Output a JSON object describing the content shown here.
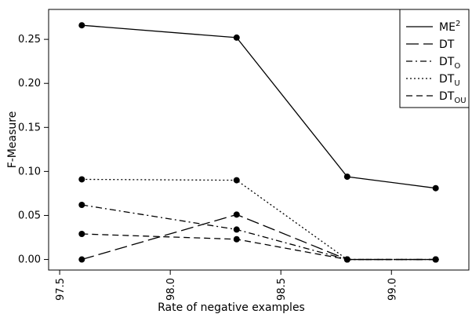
{
  "chart_data": {
    "type": "line",
    "xlabel": "Rate of negative examples",
    "ylabel": "F-Measure",
    "xlim": [
      97.45,
      99.35
    ],
    "ylim": [
      -0.012,
      0.284
    ],
    "x_ticks": [
      "97.5",
      "98.0",
      "98.5",
      "99.0"
    ],
    "y_ticks": [
      "0.00",
      "0.05",
      "0.10",
      "0.15",
      "0.20",
      "0.25"
    ],
    "x": [
      97.6,
      98.3,
      98.8,
      99.2
    ],
    "grid": false,
    "legend_position": "top-right",
    "series": [
      {
        "name": "ME",
        "sup": "2",
        "sub": "",
        "dash": "",
        "values": [
          0.266,
          0.252,
          0.094,
          0.081
        ]
      },
      {
        "name": "DT",
        "sup": "",
        "sub": "",
        "dash": "16,6",
        "values": [
          0.0,
          0.051,
          0.0,
          0.0
        ]
      },
      {
        "name": "DT",
        "sup": "",
        "sub": "O",
        "dash": "8,4,2,4",
        "values": [
          0.062,
          0.034,
          0.0,
          0.0
        ]
      },
      {
        "name": "DT",
        "sup": "",
        "sub": "U",
        "dash": "2,3",
        "values": [
          0.091,
          0.09,
          0.0,
          0.0
        ]
      },
      {
        "name": "DT",
        "sup": "",
        "sub": "OU",
        "dash": "8,5",
        "values": [
          0.029,
          0.023,
          0.0,
          0.0
        ]
      }
    ]
  }
}
